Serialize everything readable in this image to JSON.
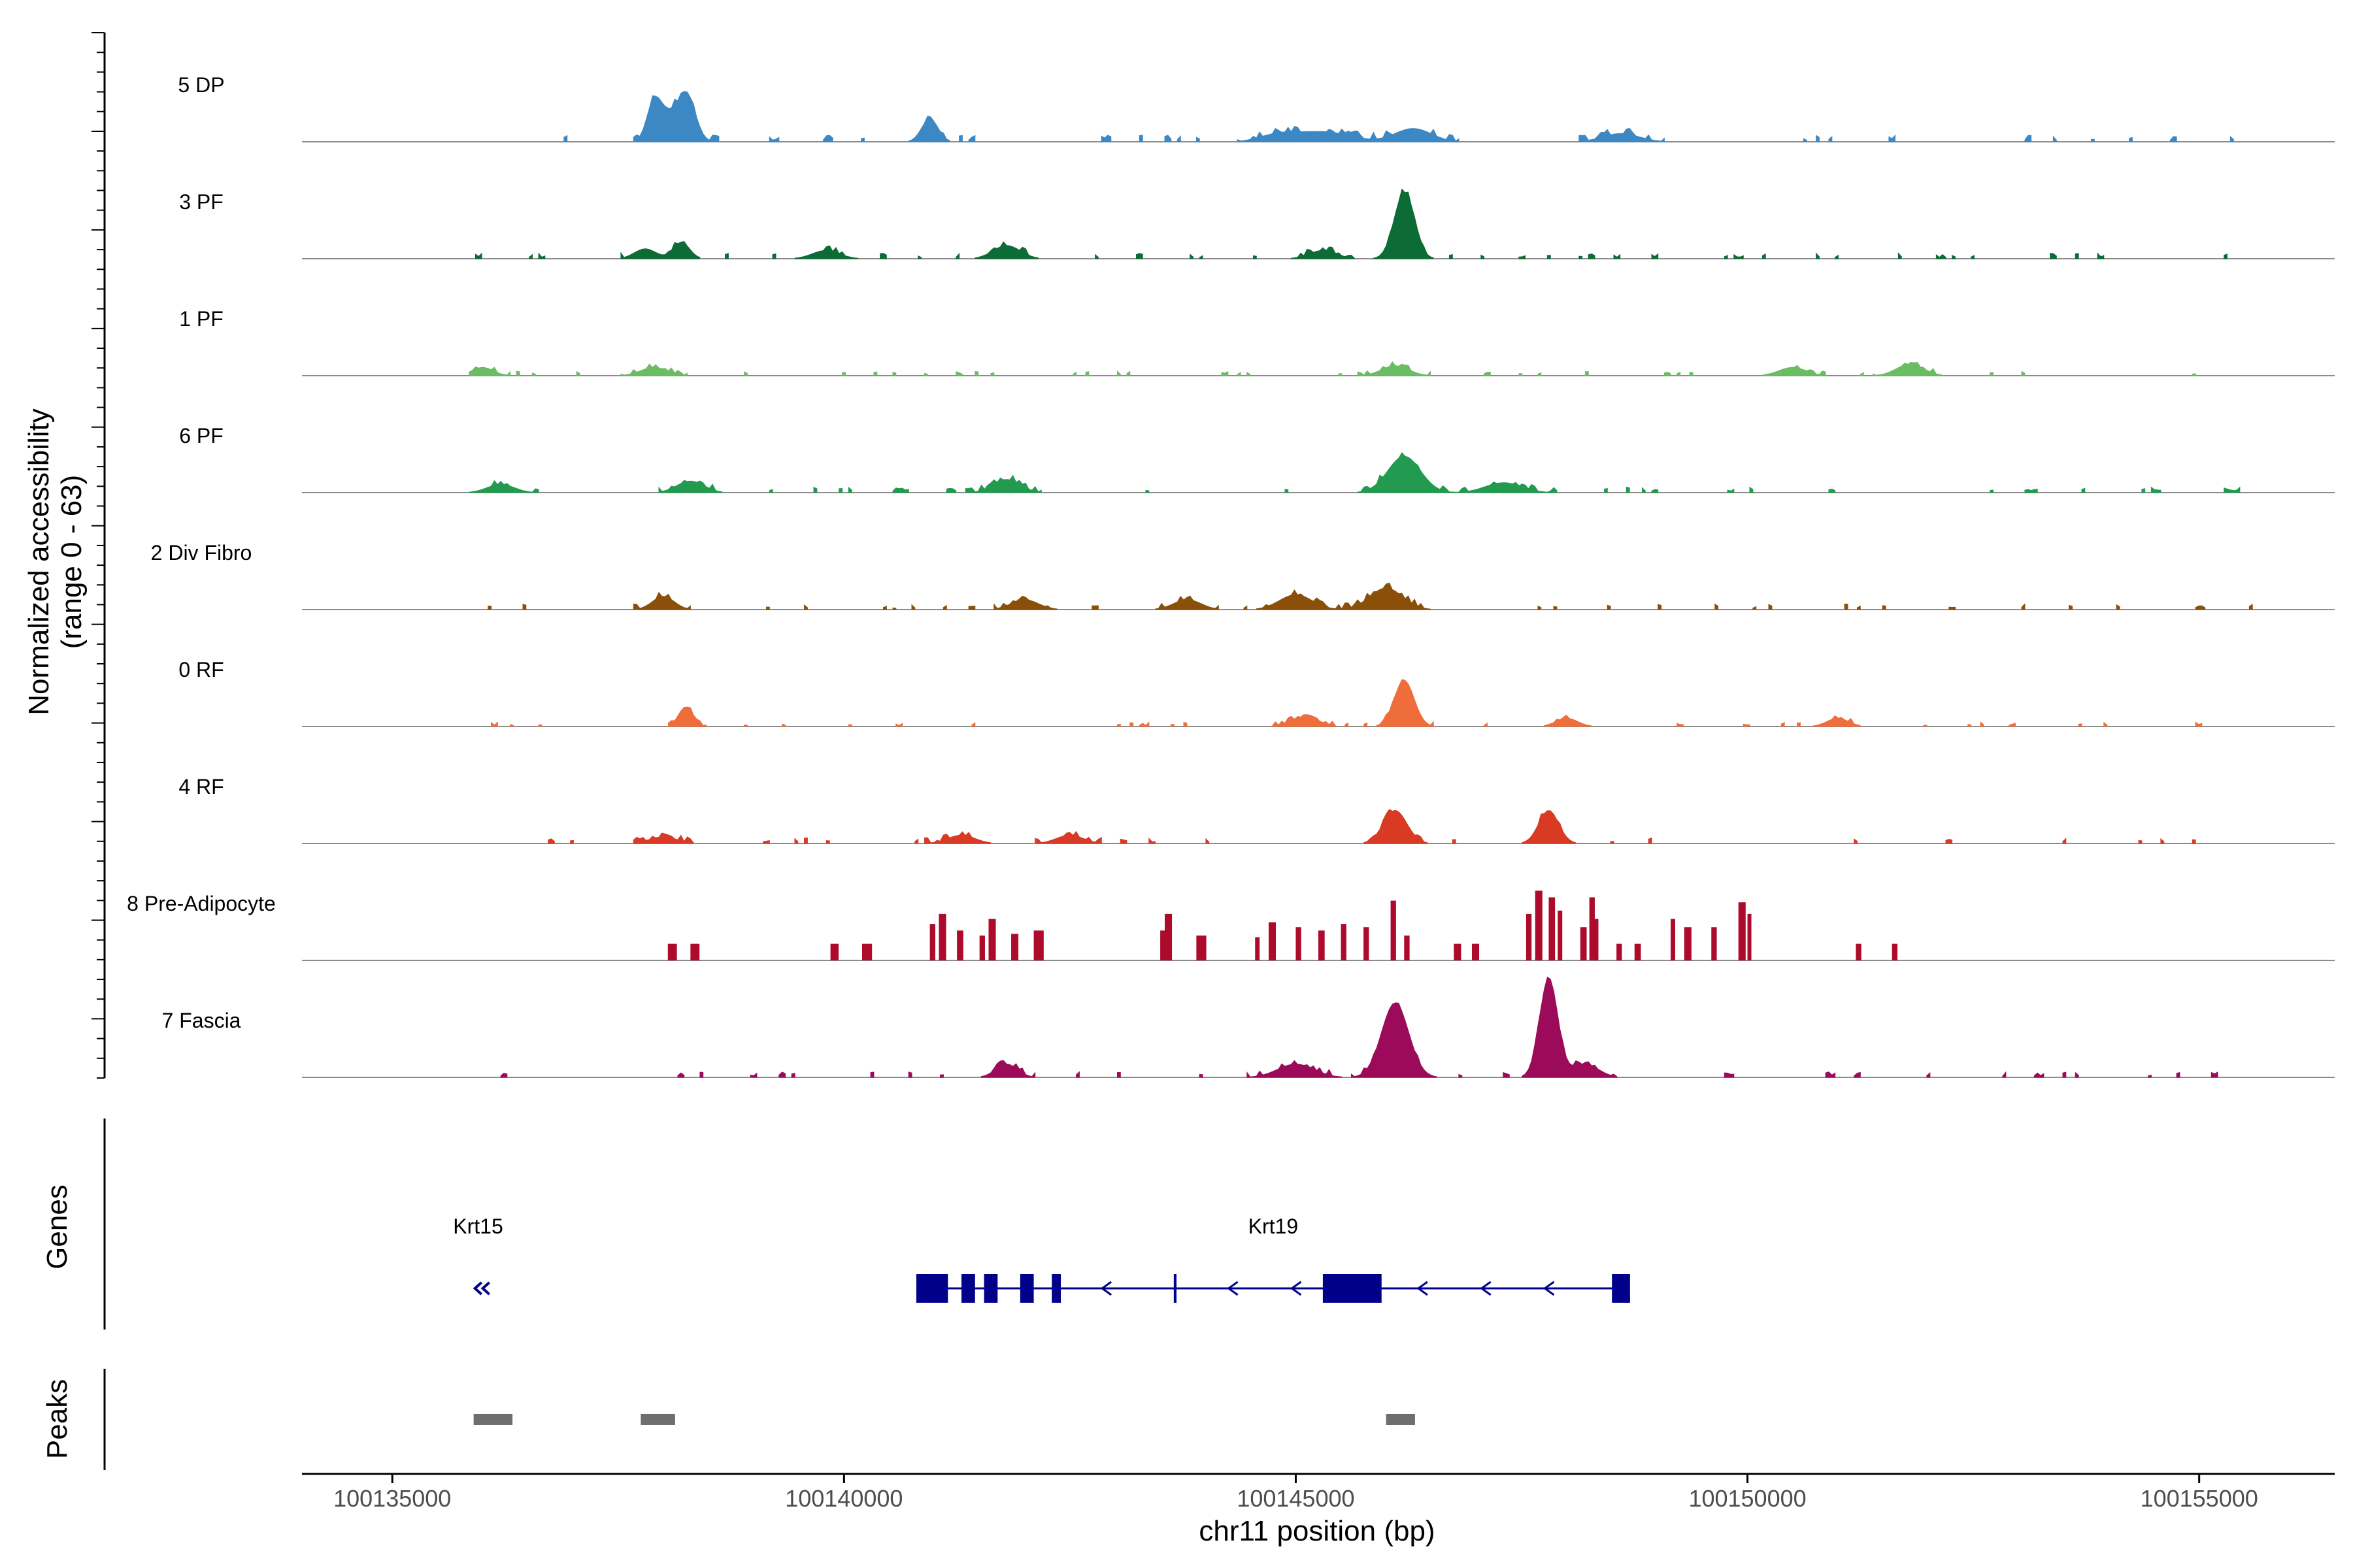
{
  "chart_data": {
    "type": "area",
    "title": "",
    "chromosome": "chr11",
    "xlabel": "chr11 position (bp)",
    "ylabel": [
      "Normalized accessibility",
      "(range 0 - 63)"
    ],
    "xlim": [
      100134000,
      100156500
    ],
    "xticks": [
      100135000,
      100140000,
      100145000,
      100150000,
      100155000
    ],
    "xtick_labels": [
      "100135000",
      "100140000",
      "100145000",
      "100150000",
      "100155000"
    ],
    "ylim": [
      0,
      63
    ],
    "series": [
      {
        "name": "5 DP",
        "color": "#3c88c4",
        "baseline": 1.2,
        "peaks": [
          [
            100137900,
            80,
            25
          ],
          [
            100138050,
            80,
            12
          ],
          [
            100138250,
            100,
            30
          ],
          [
            100140950,
            90,
            14
          ],
          [
            100145300,
            300,
            6
          ],
          [
            100146300,
            200,
            8
          ],
          [
            100144800,
            200,
            4
          ],
          [
            100148600,
            200,
            5
          ]
        ]
      },
      {
        "name": "3 PF",
        "color": "#0d6b35",
        "baseline": 1.0,
        "peaks": [
          [
            100138200,
            90,
            10
          ],
          [
            100137800,
            120,
            6
          ],
          [
            100141800,
            150,
            8
          ],
          [
            100146200,
            110,
            40
          ],
          [
            100145300,
            150,
            5
          ],
          [
            100139800,
            150,
            5
          ]
        ]
      },
      {
        "name": "1 PF",
        "color": "#6bbd63",
        "baseline": 0.8,
        "peaks": [
          [
            100136000,
            120,
            5
          ],
          [
            100137900,
            150,
            5
          ],
          [
            100146100,
            150,
            6
          ],
          [
            100151800,
            150,
            7
          ],
          [
            100150500,
            150,
            5
          ]
        ]
      },
      {
        "name": "6 PF",
        "color": "#229a4f",
        "baseline": 1.0,
        "peaks": [
          [
            100146200,
            180,
            22
          ],
          [
            100141800,
            150,
            8
          ],
          [
            100138300,
            150,
            7
          ],
          [
            100147300,
            200,
            6
          ],
          [
            100136200,
            150,
            5
          ]
        ]
      },
      {
        "name": "2 Div Fibro",
        "color": "#8a5009",
        "baseline": 1.0,
        "peaks": [
          [
            100146000,
            180,
            13
          ],
          [
            100145000,
            180,
            9
          ],
          [
            100138000,
            120,
            8
          ],
          [
            100143800,
            150,
            6
          ],
          [
            100142000,
            150,
            6
          ]
        ]
      },
      {
        "name": "0 RF",
        "color": "#ef6d3b",
        "baseline": 0.8,
        "peaks": [
          [
            100146200,
            110,
            28
          ],
          [
            100138250,
            80,
            12
          ],
          [
            100145100,
            150,
            6
          ],
          [
            100148000,
            120,
            5
          ],
          [
            100151000,
            120,
            5
          ]
        ]
      },
      {
        "name": "4 RF",
        "color": "#d93a24",
        "baseline": 1.0,
        "peaks": [
          [
            100146100,
            130,
            20
          ],
          [
            100147800,
            110,
            20
          ],
          [
            100141300,
            150,
            5
          ],
          [
            100142500,
            150,
            5
          ],
          [
            100138000,
            150,
            4
          ]
        ]
      },
      {
        "name": "8 Pre-Adipocyte",
        "color": "#ac0b2b",
        "baseline": 0,
        "blocks": [
          [
            100138050,
            100,
            10
          ],
          [
            100138300,
            100,
            10
          ],
          [
            100139850,
            90,
            10
          ],
          [
            100140200,
            110,
            10
          ],
          [
            100140950,
            60,
            22
          ],
          [
            100141050,
            80,
            28
          ],
          [
            100141250,
            70,
            18
          ],
          [
            100141500,
            60,
            15
          ],
          [
            100141600,
            80,
            25
          ],
          [
            100141850,
            80,
            16
          ],
          [
            100142100,
            110,
            18
          ],
          [
            100143500,
            70,
            18
          ],
          [
            100143550,
            80,
            28
          ],
          [
            100143900,
            110,
            15
          ],
          [
            100144550,
            50,
            14
          ],
          [
            100144700,
            80,
            23
          ],
          [
            100145000,
            60,
            20
          ],
          [
            100145250,
            70,
            18
          ],
          [
            100145500,
            60,
            22
          ],
          [
            100145750,
            60,
            20
          ],
          [
            100146050,
            60,
            36
          ],
          [
            100146200,
            60,
            15
          ],
          [
            100146750,
            80,
            10
          ],
          [
            100146950,
            80,
            10
          ],
          [
            100147550,
            60,
            28
          ],
          [
            100147650,
            80,
            42
          ],
          [
            100147800,
            70,
            38
          ],
          [
            100147900,
            50,
            30
          ],
          [
            100148150,
            70,
            20
          ],
          [
            100148250,
            60,
            38
          ],
          [
            100148300,
            50,
            25
          ],
          [
            100148550,
            60,
            10
          ],
          [
            100148750,
            70,
            10
          ],
          [
            100149150,
            50,
            25
          ],
          [
            100149300,
            80,
            20
          ],
          [
            100149600,
            60,
            20
          ],
          [
            100149900,
            80,
            35
          ],
          [
            100150000,
            40,
            28
          ],
          [
            100151200,
            60,
            10
          ],
          [
            100151600,
            60,
            10
          ]
        ]
      },
      {
        "name": "7 Fascia",
        "color": "#9c0b5a",
        "baseline": 1.0,
        "peaks": [
          [
            100146100,
            150,
            45
          ],
          [
            100147800,
            100,
            60
          ],
          [
            100145000,
            200,
            8
          ],
          [
            100148200,
            150,
            8
          ],
          [
            100141800,
            120,
            8
          ]
        ]
      }
    ],
    "genes": [
      {
        "name": "Krt15",
        "strand": "-",
        "start": 100135900,
        "end": 100136000
      },
      {
        "name": "Krt19",
        "strand": "-",
        "start": 100140800,
        "end": 100148700,
        "exons": [
          [
            100140800,
            100141150
          ],
          [
            100141300,
            100141450
          ],
          [
            100141550,
            100141700
          ],
          [
            100141950,
            100142100
          ],
          [
            100142300,
            100142400
          ],
          [
            100143650,
            100143680
          ],
          [
            100145300,
            100145950
          ],
          [
            100148500,
            100148700
          ]
        ]
      }
    ],
    "peaks_track": [
      [
        100135900,
        100136330
      ],
      [
        100137750,
        100138130
      ],
      [
        100146000,
        100146320
      ]
    ],
    "track_labels": {
      "genes": "Genes",
      "peaks": "Peaks"
    }
  }
}
